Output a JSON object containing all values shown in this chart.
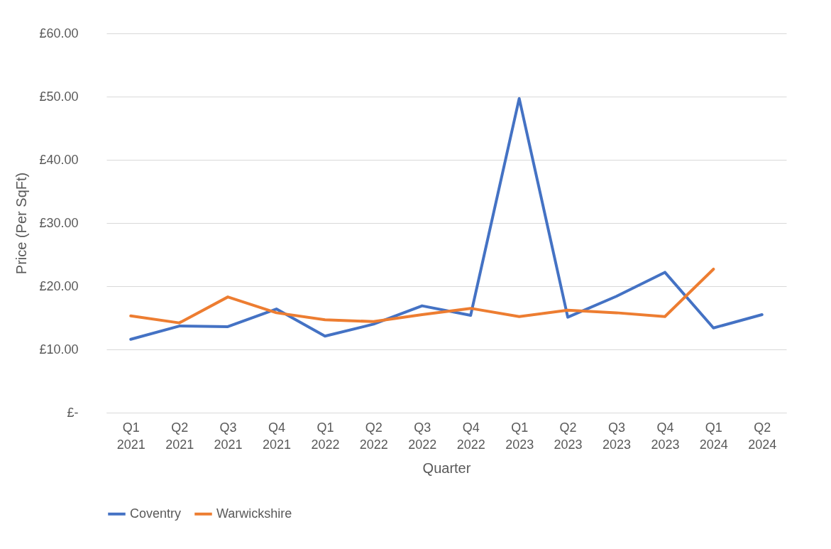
{
  "chart_data": {
    "type": "line",
    "xlabel": "Quarter",
    "ylabel": "Price (Per SqFt)",
    "categories": [
      "Q1 2021",
      "Q2 2021",
      "Q3 2021",
      "Q4 2021",
      "Q1 2022",
      "Q2 2022",
      "Q3 2022",
      "Q4 2022",
      "Q1 2023",
      "Q2 2023",
      "Q3 2023",
      "Q4 2023",
      "Q1 2024",
      "Q2 2024"
    ],
    "series": [
      {
        "name": "Coventry",
        "color": "#4472c4",
        "values": [
          11.6,
          13.7,
          13.6,
          16.4,
          12.1,
          14.0,
          16.9,
          15.4,
          49.7,
          15.1,
          18.4,
          22.2,
          13.4,
          15.5
        ]
      },
      {
        "name": "Warwickshire",
        "color": "#ed7d31",
        "values": [
          15.3,
          14.2,
          18.3,
          15.8,
          14.7,
          14.4,
          15.5,
          16.5,
          15.2,
          16.2,
          15.8,
          15.2,
          22.7,
          null
        ]
      }
    ],
    "ylim": [
      0,
      60
    ],
    "yticks": [
      {
        "value": 0,
        "label": "£-"
      },
      {
        "value": 10,
        "label": "£10.00"
      },
      {
        "value": 20,
        "label": "£20.00"
      },
      {
        "value": 30,
        "label": "£30.00"
      },
      {
        "value": 40,
        "label": "£40.00"
      },
      {
        "value": 50,
        "label": "£50.00"
      },
      {
        "value": 60,
        "label": "£60.00"
      }
    ],
    "grid": "y",
    "legend": "bottom",
    "marker": "none",
    "line_style": "solid"
  }
}
